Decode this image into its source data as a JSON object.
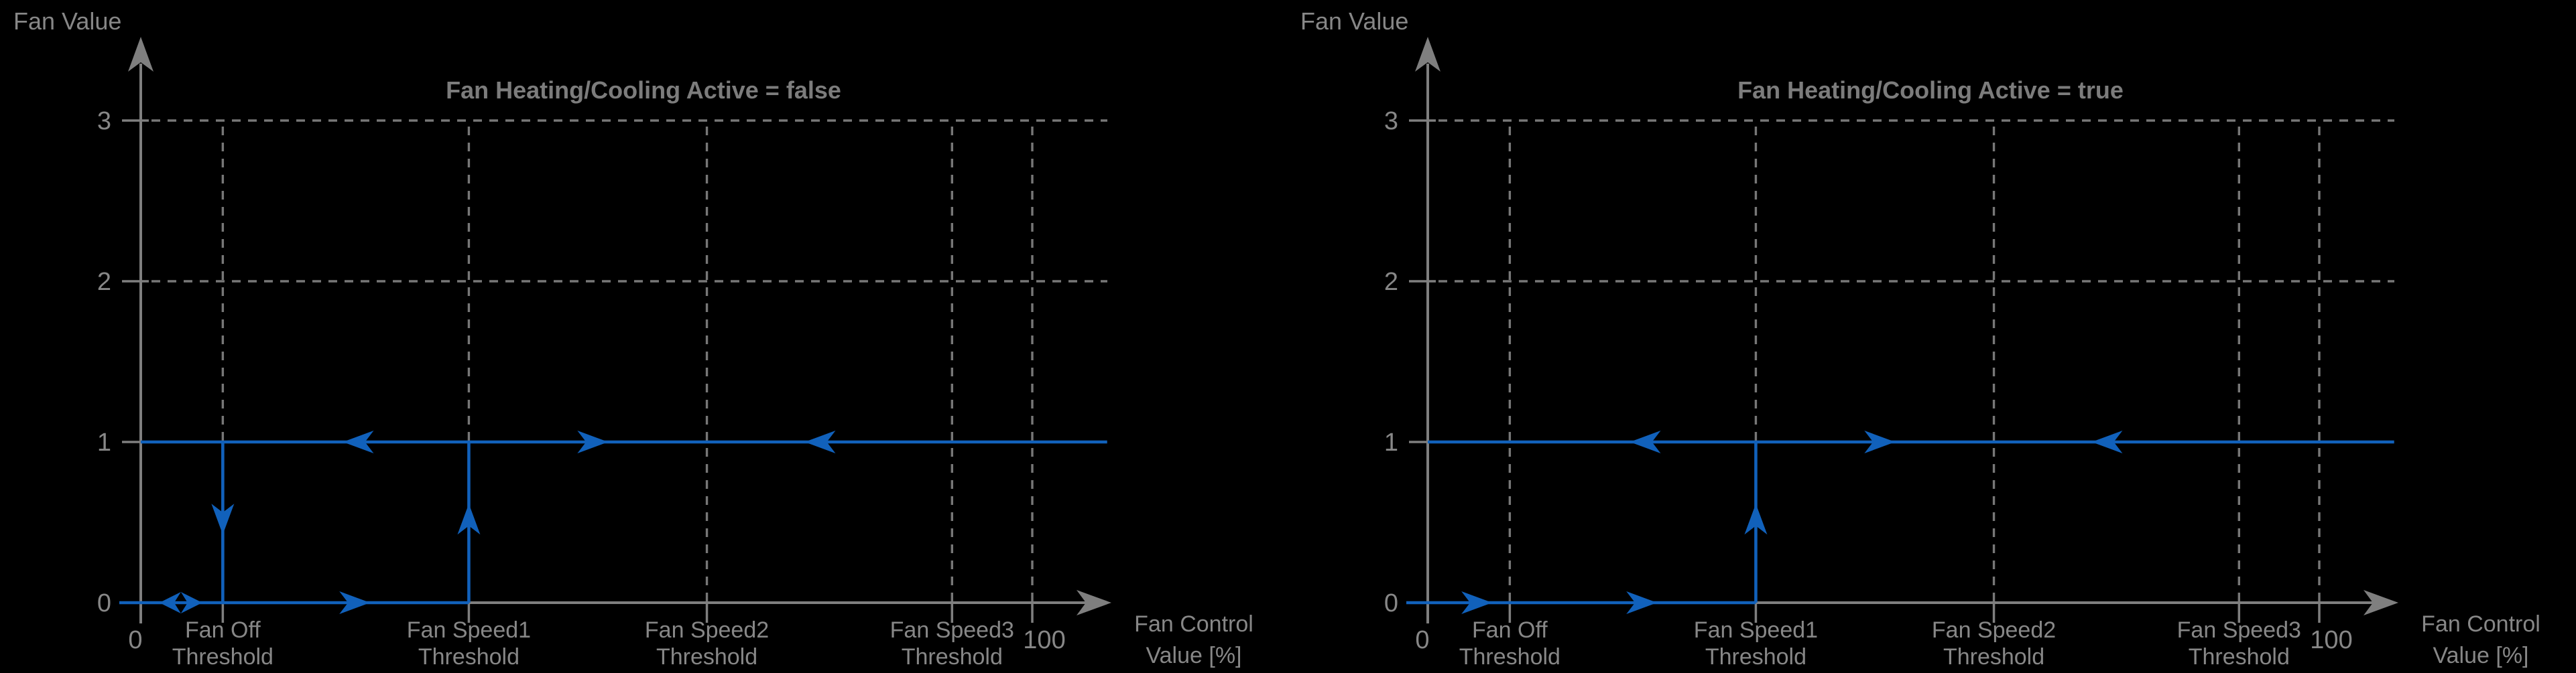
{
  "figure": {
    "background": "#000000",
    "colors": {
      "axis_gray": "#7f7f7f",
      "grid_gray": "#777777",
      "text_gray": "#878787",
      "title_gray": "#7c7c7c",
      "series_blue": "#1161bb"
    }
  },
  "chart_data": [
    {
      "type": "line",
      "title": "Fan Heating/Cooling Active = false",
      "ylabel": "Fan Value",
      "xlabel_lines": [
        "Fan Control",
        "Value [%]"
      ],
      "xlim": [
        0,
        108.5
      ],
      "ylim": [
        0,
        3.5
      ],
      "grid": "dashed",
      "legend": "none",
      "yticks": [
        {
          "value": 0,
          "label": "0"
        },
        {
          "value": 1,
          "label": "1"
        },
        {
          "value": 2,
          "label": "2"
        },
        {
          "value": 3,
          "label": "3"
        }
      ],
      "xticks": [
        {
          "value": 0,
          "label_lines": [
            "0"
          ]
        },
        {
          "value": 9.2,
          "label_lines": [
            "Fan Off",
            "Threshold"
          ]
        },
        {
          "value": 36.8,
          "label_lines": [
            "Fan Speed1",
            "Threshold"
          ]
        },
        {
          "value": 63.5,
          "label_lines": [
            "Fan Speed2",
            "Threshold"
          ]
        },
        {
          "value": 91,
          "label_lines": [
            "Fan Speed3",
            "Threshold"
          ]
        },
        {
          "value": 100,
          "label_lines": [
            "100"
          ]
        }
      ],
      "h_gridlines_y": [
        2,
        3
      ],
      "v_gridlines_x": [
        9.2,
        36.8,
        63.5,
        91,
        100
      ],
      "series": [
        {
          "name": "fan-value-1-level",
          "points": [
            [
              0,
              1
            ],
            [
              108.4,
              1
            ]
          ]
        },
        {
          "name": "fan-value-0-level",
          "points": [
            [
              0,
              0
            ],
            [
              36.8,
              0
            ]
          ]
        },
        {
          "name": "drop-at-fan-off-threshold",
          "points": [
            [
              9.2,
              1
            ],
            [
              9.2,
              0
            ]
          ]
        },
        {
          "name": "rise-at-fan-speed1-threshold",
          "points": [
            [
              36.8,
              0
            ],
            [
              36.8,
              1
            ]
          ]
        }
      ],
      "direction_arrows": [
        {
          "x": 4.5,
          "y": 0,
          "dir": "both"
        },
        {
          "x": 24,
          "y": 0,
          "dir": "right"
        },
        {
          "x": 9.2,
          "y": 0.52,
          "dir": "down"
        },
        {
          "x": 36.8,
          "y": 0.52,
          "dir": "up"
        },
        {
          "x": 24.4,
          "y": 1,
          "dir": "left"
        },
        {
          "x": 50.7,
          "y": 1,
          "dir": "right"
        },
        {
          "x": 76.2,
          "y": 1,
          "dir": "left"
        }
      ]
    },
    {
      "type": "line",
      "title": "Fan Heating/Cooling Active = true",
      "ylabel": "Fan Value",
      "xlabel_lines": [
        "Fan Control",
        "Value [%]"
      ],
      "xlim": [
        0,
        108.5
      ],
      "ylim": [
        0,
        3.5
      ],
      "grid": "dashed",
      "legend": "none",
      "yticks": [
        {
          "value": 0,
          "label": "0"
        },
        {
          "value": 1,
          "label": "1"
        },
        {
          "value": 2,
          "label": "2"
        },
        {
          "value": 3,
          "label": "3"
        }
      ],
      "xticks": [
        {
          "value": 0,
          "label_lines": [
            "0"
          ]
        },
        {
          "value": 9.2,
          "label_lines": [
            "Fan Off",
            "Threshold"
          ]
        },
        {
          "value": 36.8,
          "label_lines": [
            "Fan Speed1",
            "Threshold"
          ]
        },
        {
          "value": 63.5,
          "label_lines": [
            "Fan Speed2",
            "Threshold"
          ]
        },
        {
          "value": 91,
          "label_lines": [
            "Fan Speed3",
            "Threshold"
          ]
        },
        {
          "value": 100,
          "label_lines": [
            "100"
          ]
        }
      ],
      "h_gridlines_y": [
        2,
        3
      ],
      "v_gridlines_x": [
        9.2,
        36.8,
        63.5,
        91,
        100
      ],
      "series": [
        {
          "name": "fan-value-1-level",
          "points": [
            [
              0,
              1
            ],
            [
              108.4,
              1
            ]
          ]
        },
        {
          "name": "fan-value-0-level",
          "points": [
            [
              0,
              0
            ],
            [
              36.8,
              0
            ]
          ]
        },
        {
          "name": "rise-at-fan-speed1-threshold",
          "points": [
            [
              36.8,
              0
            ],
            [
              36.8,
              1
            ]
          ]
        }
      ],
      "direction_arrows": [
        {
          "x": 5.5,
          "y": 0,
          "dir": "right"
        },
        {
          "x": 24,
          "y": 0,
          "dir": "right"
        },
        {
          "x": 36.8,
          "y": 0.52,
          "dir": "up"
        },
        {
          "x": 24.4,
          "y": 1,
          "dir": "left"
        },
        {
          "x": 50.7,
          "y": 1,
          "dir": "right"
        },
        {
          "x": 76.2,
          "y": 1,
          "dir": "left"
        }
      ]
    }
  ]
}
